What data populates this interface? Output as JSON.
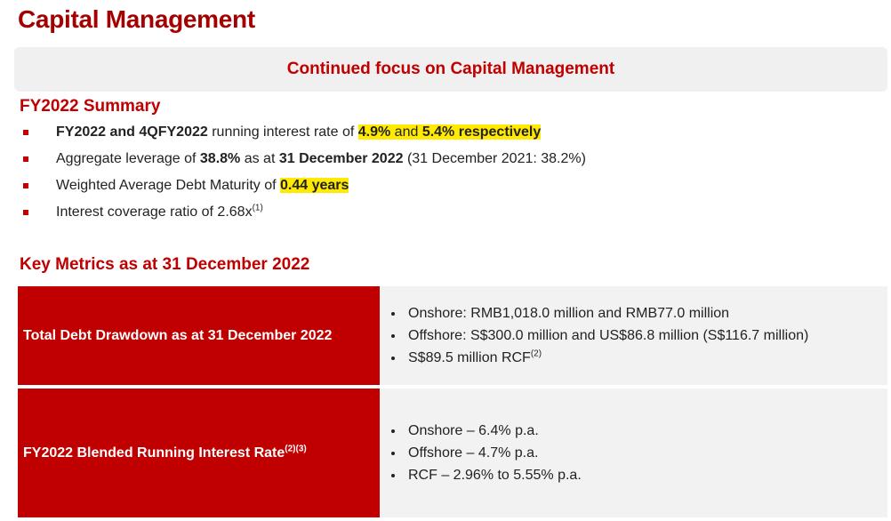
{
  "title": "Capital Management",
  "banner": "Continued focus on Capital Management",
  "summary": {
    "heading": "FY2022 Summary",
    "bullets": [
      [
        {
          "text": "FY2022 and 4QFY2022",
          "bold": true
        },
        {
          "text": " running interest rate of "
        },
        {
          "text": "4.9%",
          "bold": true,
          "highlight": true
        },
        {
          "text": " and ",
          "highlight": true
        },
        {
          "text": "5.4% respectively",
          "bold": true,
          "highlight": true
        }
      ],
      [
        {
          "text": "Aggregate leverage of "
        },
        {
          "text": "38.8%",
          "bold": true
        },
        {
          "text": " as at "
        },
        {
          "text": "31 December 2022",
          "bold": true
        },
        {
          "text": " (31 December 2021: 38.2%)"
        }
      ],
      [
        {
          "text": "Weighted Average Debt Maturity of "
        },
        {
          "text": "0.44 years",
          "bold": true,
          "highlight": true
        }
      ],
      [
        {
          "text": "Interest coverage ratio of 2.68x"
        },
        {
          "text": "(1)",
          "sup": true
        }
      ]
    ]
  },
  "metrics": {
    "heading": "Key Metrics as at 31 December 2022",
    "rows": [
      {
        "label": [
          {
            "text": "Total Debt Drawdown as at 31 December 2022"
          }
        ],
        "items": [
          [
            {
              "text": "Onshore: RMB1,018.0 million and RMB77.0 million"
            }
          ],
          [
            {
              "text": "Offshore: S$300.0 million and US$86.8 million (S$116.7 million)"
            }
          ],
          [
            {
              "text": "S$89.5 million RCF"
            },
            {
              "text": "(2)",
              "sup": true
            }
          ]
        ]
      },
      {
        "label": [
          {
            "text": "FY2022 Blended Running Interest Rate"
          },
          {
            "text": "(2)(3)",
            "sup": true
          }
        ],
        "items": [
          [
            {
              "text": "Onshore – 6.4% p.a."
            }
          ],
          [
            {
              "text": "Offshore – 4.7% p.a."
            }
          ],
          [
            {
              "text": "RCF – 2.96% to 5.55% p.a."
            }
          ]
        ]
      }
    ]
  }
}
